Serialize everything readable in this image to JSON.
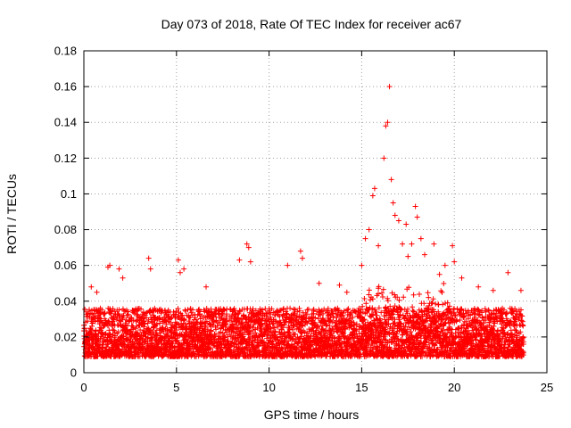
{
  "chart_data": {
    "type": "scatter",
    "title": "Day 073 of 2018, Rate Of TEC Index for receiver ac67",
    "xlabel": "GPS time / hours",
    "ylabel": "ROTI / TECUs",
    "xlim": [
      0,
      25
    ],
    "ylim": [
      0,
      0.18
    ],
    "xticks": [
      0,
      5,
      10,
      15,
      20,
      25
    ],
    "yticks": [
      0,
      0.02,
      0.04,
      0.06,
      0.08,
      0.1,
      0.12,
      0.14,
      0.16,
      0.18
    ],
    "xtick_labels": [
      "0",
      "5",
      "10",
      "15",
      "20",
      "25"
    ],
    "ytick_labels": [
      "0",
      "0.02",
      "0.04",
      "0.06",
      "0.08",
      "0.1",
      "0.12",
      "0.14",
      "0.16",
      "0.18"
    ],
    "grid": true,
    "marker": "+",
    "color": "#ff0000",
    "series": [
      {
        "name": "ROTI",
        "x_range": [
          0,
          23.75
        ],
        "baseline_range": [
          0.005,
          0.04
        ],
        "points": [
          [
            0.4,
            0.048
          ],
          [
            0.7,
            0.045
          ],
          [
            1.3,
            0.059
          ],
          [
            1.4,
            0.06
          ],
          [
            1.9,
            0.058
          ],
          [
            2.1,
            0.053
          ],
          [
            3.5,
            0.064
          ],
          [
            3.6,
            0.058
          ],
          [
            5.1,
            0.063
          ],
          [
            5.2,
            0.056
          ],
          [
            5.4,
            0.058
          ],
          [
            6.6,
            0.048
          ],
          [
            8.4,
            0.063
          ],
          [
            8.8,
            0.072
          ],
          [
            8.9,
            0.07
          ],
          [
            9.0,
            0.062
          ],
          [
            11.0,
            0.06
          ],
          [
            11.7,
            0.068
          ],
          [
            11.8,
            0.064
          ],
          [
            12.7,
            0.05
          ],
          [
            13.8,
            0.049
          ],
          [
            14.2,
            0.045
          ],
          [
            15.0,
            0.06
          ],
          [
            15.2,
            0.075
          ],
          [
            15.4,
            0.08
          ],
          [
            15.6,
            0.099
          ],
          [
            15.7,
            0.103
          ],
          [
            15.9,
            0.071
          ],
          [
            16.2,
            0.12
          ],
          [
            16.3,
            0.138
          ],
          [
            16.4,
            0.14
          ],
          [
            16.5,
            0.16
          ],
          [
            16.6,
            0.108
          ],
          [
            16.7,
            0.095
          ],
          [
            16.8,
            0.088
          ],
          [
            17.0,
            0.085
          ],
          [
            17.2,
            0.072
          ],
          [
            17.4,
            0.083
          ],
          [
            17.5,
            0.065
          ],
          [
            17.7,
            0.072
          ],
          [
            17.9,
            0.093
          ],
          [
            18.0,
            0.087
          ],
          [
            18.2,
            0.075
          ],
          [
            18.4,
            0.066
          ],
          [
            18.9,
            0.072
          ],
          [
            19.2,
            0.055
          ],
          [
            19.5,
            0.06
          ],
          [
            19.9,
            0.071
          ],
          [
            20.0,
            0.062
          ],
          [
            20.4,
            0.053
          ],
          [
            21.3,
            0.048
          ],
          [
            22.1,
            0.046
          ],
          [
            22.9,
            0.056
          ],
          [
            23.6,
            0.046
          ]
        ]
      }
    ]
  }
}
